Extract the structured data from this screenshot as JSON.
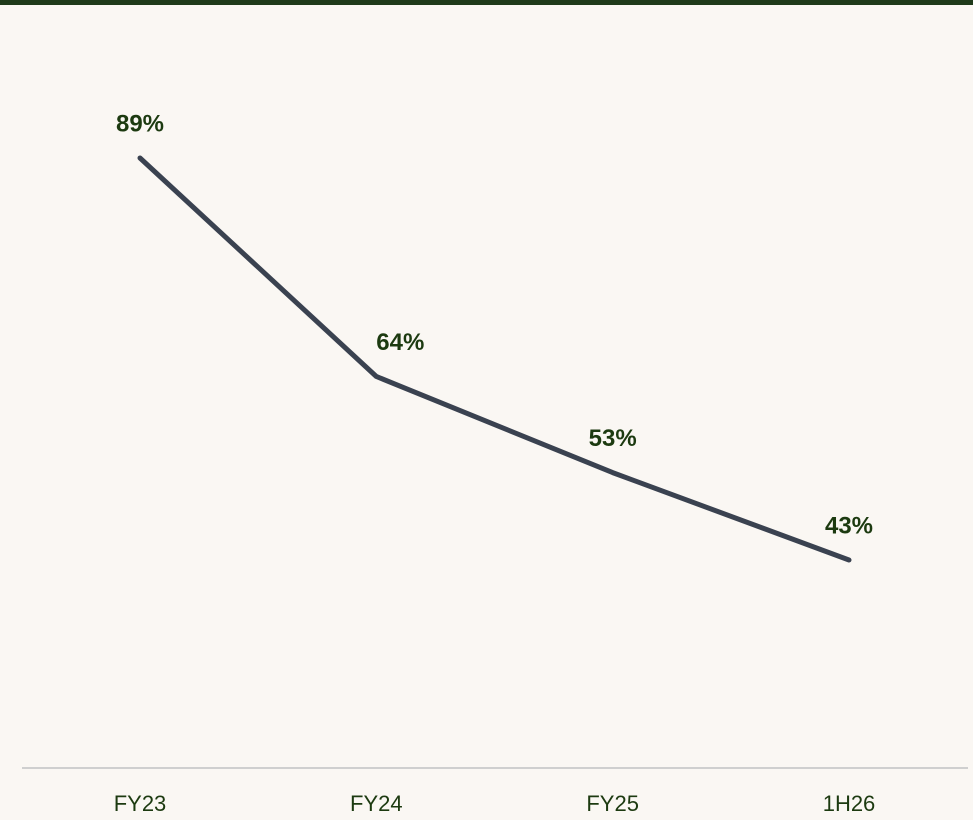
{
  "chart_data": {
    "type": "line",
    "categories": [
      "FY23",
      "FY24",
      "FY25",
      "1H26"
    ],
    "values": [
      89,
      64,
      53,
      43
    ],
    "value_labels": [
      "89%",
      "64%",
      "53%",
      "43%"
    ],
    "color": "#3a4250"
  }
}
